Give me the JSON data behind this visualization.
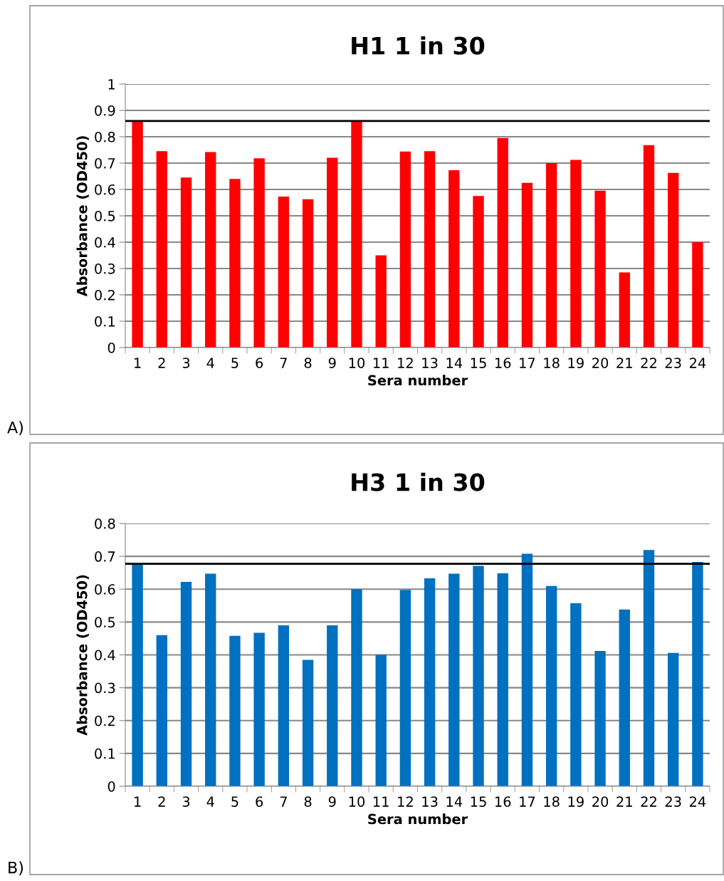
{
  "chart_data": [
    {
      "type": "bar",
      "title": "H1 1 in 30",
      "xlabel": "Sera number",
      "ylabel": "Absorbance (OD450)",
      "categories": [
        "1",
        "2",
        "3",
        "4",
        "5",
        "6",
        "7",
        "8",
        "9",
        "10",
        "11",
        "12",
        "13",
        "14",
        "15",
        "16",
        "17",
        "18",
        "19",
        "20",
        "21",
        "22",
        "23",
        "24"
      ],
      "values": [
        0.86,
        0.745,
        0.645,
        0.742,
        0.64,
        0.718,
        0.573,
        0.563,
        0.72,
        0.86,
        0.35,
        0.744,
        0.745,
        0.673,
        0.575,
        0.795,
        0.625,
        0.7,
        0.712,
        0.595,
        0.285,
        0.768,
        0.663,
        0.4
      ],
      "color": "#ff0000",
      "ylim": [
        0,
        1
      ],
      "yticks": [
        0,
        {
          "value": 0.1,
          "label": "0.1"
        },
        {
          "value": 0.2,
          "label": "0.2"
        },
        {
          "value": 0.3,
          "label": "0.3"
        },
        {
          "value": 0.4,
          "label": "0.4"
        },
        {
          "value": 0.5,
          "label": "0.5"
        },
        {
          "value": 0.6,
          "label": "0.6"
        },
        {
          "value": 0.7,
          "label": "0.7"
        },
        {
          "value": 0.8,
          "label": "0.8"
        },
        {
          "value": 0.9,
          "label": "0.9"
        },
        1
      ],
      "grid": "y",
      "ref_lines": [
        {
          "axis": "y",
          "value": 0.86,
          "color": "#000000"
        }
      ],
      "annotations": [
        "A)"
      ]
    },
    {
      "type": "bar",
      "title": "H3 1 in 30",
      "xlabel": "Sera number",
      "ylabel": "Absorbance (OD450)",
      "categories": [
        "1",
        "2",
        "3",
        "4",
        "5",
        "6",
        "7",
        "8",
        "9",
        "10",
        "11",
        "12",
        "13",
        "14",
        "15",
        "16",
        "17",
        "18",
        "19",
        "20",
        "21",
        "22",
        "23",
        "24"
      ],
      "values": [
        0.675,
        0.46,
        0.622,
        0.647,
        0.458,
        0.467,
        0.49,
        0.385,
        0.49,
        0.6,
        0.4,
        0.598,
        0.633,
        0.647,
        0.671,
        0.648,
        0.708,
        0.61,
        0.557,
        0.412,
        0.538,
        0.719,
        0.406,
        0.683
      ],
      "color": "#0070c0",
      "ylim": [
        0,
        0.8
      ],
      "yticks": [
        0,
        {
          "value": 0.1,
          "label": "0.1"
        },
        {
          "value": 0.2,
          "label": "0.2"
        },
        {
          "value": 0.3,
          "label": "0.3"
        },
        {
          "value": 0.4,
          "label": "0.4"
        },
        {
          "value": 0.5,
          "label": "0.5"
        },
        {
          "value": 0.6,
          "label": "0.6"
        },
        {
          "value": 0.7,
          "label": "0.7"
        },
        {
          "value": 0.8,
          "label": "0.8"
        }
      ],
      "grid": "y",
      "ref_lines": [
        {
          "axis": "y",
          "value": 0.677,
          "color": "#000000"
        }
      ],
      "annotations": [
        "B)"
      ]
    }
  ]
}
